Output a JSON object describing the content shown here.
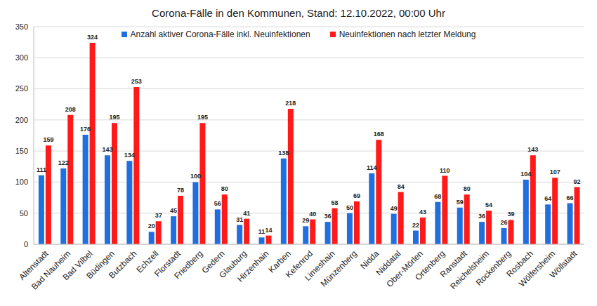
{
  "chart_data": {
    "type": "bar",
    "title": "Corona-Fälle in den Kommunen, Stand: 12.10.2022, 00:00 Uhr",
    "categories": [
      "Altenstadt",
      "Bad Nauheim",
      "Bad Vilbel",
      "Büdingen",
      "Butzbach",
      "Echzell",
      "Florstadt",
      "Friedberg",
      "Gedern",
      "Glauburg",
      "Hirzenhain",
      "Karben",
      "Kefenrod",
      "Limeshain",
      "Münzenberg",
      "Nidda",
      "Niddatal",
      "Ober-Mörlen",
      "Ortenberg",
      "Ranstadt",
      "Reichelsheim",
      "Rockenberg",
      "Rosbach",
      "Wölfersheim",
      "Wöllstadt"
    ],
    "series": [
      {
        "name": "Anzahl aktiver Corona-Fälle inkl. Neuinfektionen",
        "color": "#1f6fe0",
        "values": [
          111,
          122,
          176,
          143,
          134,
          20,
          45,
          100,
          56,
          31,
          11,
          138,
          29,
          36,
          50,
          114,
          49,
          22,
          68,
          59,
          36,
          26,
          104,
          64,
          66
        ]
      },
      {
        "name": "Neuinfektionen nach letzter Meldung",
        "color": "#ff1a1a",
        "values": [
          159,
          208,
          324,
          195,
          253,
          37,
          78,
          195,
          80,
          41,
          14,
          218,
          40,
          58,
          69,
          168,
          84,
          43,
          110,
          80,
          54,
          39,
          143,
          107,
          92
        ]
      }
    ],
    "ylim": [
      0,
      350
    ],
    "yticks": [
      0,
      50,
      100,
      150,
      200,
      250,
      300,
      350
    ],
    "grid": true,
    "legend": "top",
    "data_labels": true
  }
}
